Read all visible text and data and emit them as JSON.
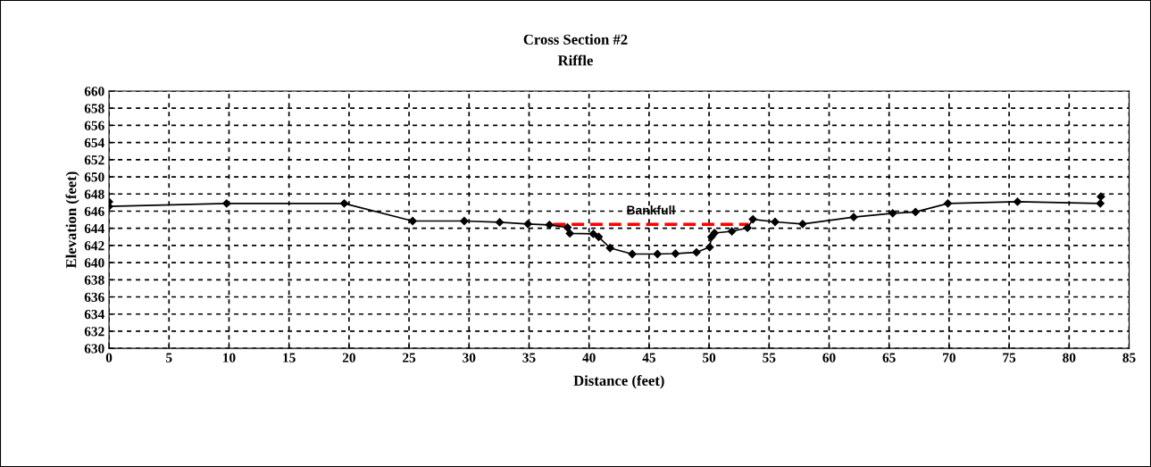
{
  "chart_data": {
    "type": "line",
    "title": "Cross Section #2",
    "subtitle": "Riffle",
    "xlabel": "Distance (feet)",
    "ylabel": "Elevation (feet)",
    "xlim": [
      0,
      85
    ],
    "xticks": [
      0,
      5,
      10,
      15,
      20,
      25,
      30,
      35,
      40,
      45,
      50,
      55,
      60,
      65,
      70,
      75,
      80,
      85
    ],
    "ylim": [
      630,
      660
    ],
    "yticks": [
      630,
      632,
      634,
      636,
      638,
      640,
      642,
      644,
      646,
      648,
      650,
      652,
      654,
      656,
      658,
      660
    ],
    "grid": true,
    "marker": "diamond",
    "line_style": "solid",
    "series": [
      {
        "color": "#000000",
        "x": [
          0,
          0,
          9.8,
          19.6,
          25.3,
          29.6,
          32.55,
          34.9,
          36.7,
          38.2,
          38.4,
          40.35,
          40.8,
          41.75,
          43.6,
          45.7,
          47.2,
          48.95,
          50.05,
          50.2,
          50.45,
          51.9,
          53.2,
          53.65,
          55.5,
          57.8,
          62.05,
          65.3,
          67.2,
          69.9,
          75.7,
          82.6,
          82.65
        ],
        "values": [
          647.1,
          646.55,
          646.9,
          646.9,
          644.85,
          644.85,
          644.7,
          644.5,
          644.4,
          644.1,
          643.4,
          643.35,
          643.0,
          641.7,
          641.0,
          641.0,
          641.05,
          641.2,
          641.8,
          643.0,
          643.45,
          643.65,
          644.05,
          645.05,
          644.75,
          644.5,
          645.3,
          645.75,
          645.9,
          646.9,
          647.1,
          646.9,
          647.7
        ]
      },
      {
        "name": "Bankfull",
        "type": "line",
        "color": "#ff0000",
        "line_style": "dashed",
        "marker": "none",
        "x": [
          37.0,
          53.3
        ],
        "values": [
          644.45,
          644.45
        ]
      }
    ]
  }
}
